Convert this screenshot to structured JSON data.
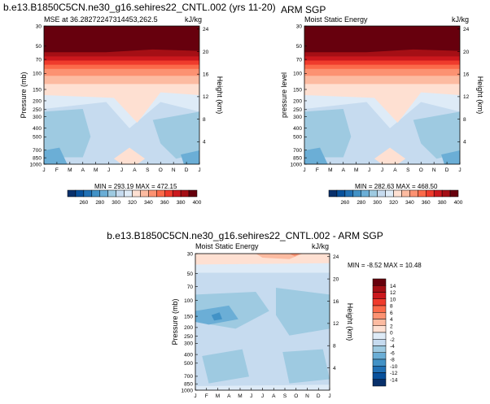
{
  "colors": {
    "diverging": [
      "#08306b",
      "#08519c",
      "#2171b5",
      "#4292c6",
      "#6baed6",
      "#9ecae1",
      "#c6dbef",
      "#deebf7",
      "#fee0d2",
      "#fcbba1",
      "#fc9272",
      "#fb6a4a",
      "#ef3b2c",
      "#cb181d",
      "#a50f15",
      "#67000d"
    ]
  },
  "figure": {
    "top_left_title": "b.e13.B1850C5CN.ne30_g16.sehires22_CNTL.002 (yrs 11-20)",
    "bottom_title": "b.e13.B1850C5CN.ne30_g16.sehires22_CNTL.002 - ARM SGP"
  },
  "chart_data": [
    {
      "type": "heatmap",
      "left_title": "MSE at 36.28272247314453,262.5",
      "right_title": "kJ/kg",
      "x_ticks": [
        "J",
        "F",
        "M",
        "A",
        "M",
        "J",
        "J",
        "A",
        "S",
        "O",
        "N",
        "D",
        "J"
      ],
      "ylabel": "Pressure (mb)",
      "y_ticks": [
        "30",
        "50",
        "70",
        "100",
        "150",
        "200",
        "250",
        "300",
        "400",
        "500",
        "700",
        "850",
        "1000"
      ],
      "y2label": "Height (km)",
      "y2_ticks": [
        "24",
        "20",
        "16",
        "12",
        "8",
        "4"
      ],
      "min_max_text": "MIN = 293.19  MAX = 472.15",
      "colorbar_labels": [
        "260",
        "280",
        "300",
        "320",
        "340",
        "360",
        "380",
        "400"
      ]
    },
    {
      "type": "heatmap",
      "subtitle": "ARM SGP",
      "left_title": "Moist Static Energy",
      "right_title": "kJ/kg",
      "x_ticks": [
        "J",
        "F",
        "M",
        "A",
        "M",
        "J",
        "J",
        "A",
        "S",
        "O",
        "N",
        "D",
        "J"
      ],
      "ylabel": "pressure level",
      "y_ticks": [
        "30",
        "50",
        "70",
        "100",
        "150",
        "200",
        "250",
        "300",
        "400",
        "500",
        "700",
        "850",
        "1000"
      ],
      "y2label": "Height (km)",
      "y2_ticks": [
        "24",
        "20",
        "16",
        "12",
        "8",
        "4"
      ],
      "min_max_text": "MIN = 282.63  MAX = 468.50",
      "colorbar_labels": [
        "260",
        "280",
        "300",
        "320",
        "340",
        "360",
        "380",
        "400"
      ]
    },
    {
      "type": "heatmap",
      "left_title": "Moist Static Energy",
      "right_title": "kJ/kg",
      "x_ticks": [
        "J",
        "F",
        "M",
        "A",
        "M",
        "J",
        "J",
        "A",
        "S",
        "O",
        "N",
        "D",
        "J"
      ],
      "ylabel": "Pressure (mb)",
      "y_ticks": [
        "30",
        "50",
        "70",
        "100",
        "150",
        "200",
        "250",
        "300",
        "400",
        "500",
        "700",
        "850",
        "1000"
      ],
      "y2label": "Height (km)",
      "y2_ticks": [
        "24",
        "20",
        "16",
        "12",
        "8",
        "4"
      ],
      "min_max_text": "MIN =  -8.52  MAX =  10.48",
      "colorbar_labels": [
        "14",
        "12",
        "10",
        "8",
        "6",
        "4",
        "2",
        "0",
        "-2",
        "-4",
        "-6",
        "-8",
        "-10",
        "-12",
        "-14"
      ]
    }
  ]
}
